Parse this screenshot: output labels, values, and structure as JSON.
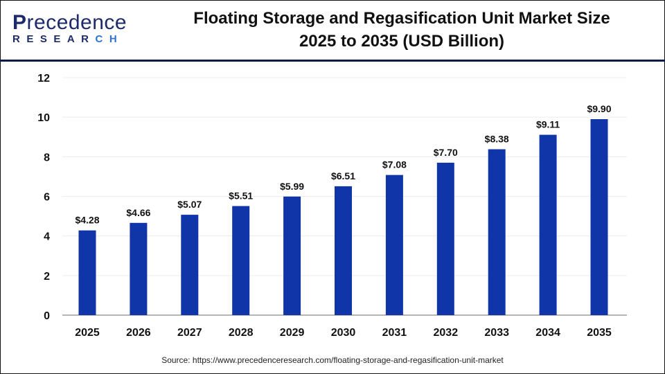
{
  "brand": {
    "logo_text": "Precedence",
    "logo_subtext": "RESEARCH"
  },
  "title_line1": "Floating Storage and Regasification Unit Market Size",
  "title_line2": "2025 to 2035 (USD Billion)",
  "source": "Source: https://www.precedenceresearch.com/floating-storage-and-regasification-unit-market",
  "chart_data": {
    "type": "bar",
    "title": "Floating Storage and Regasification Unit Market Size 2025 to 2035 (USD Billion)",
    "categories": [
      "2025",
      "2026",
      "2027",
      "2028",
      "2029",
      "2030",
      "2031",
      "2032",
      "2033",
      "2034",
      "2035"
    ],
    "values": [
      4.28,
      4.66,
      5.07,
      5.51,
      5.99,
      6.51,
      7.08,
      7.7,
      8.38,
      9.11,
      9.9
    ],
    "data_labels": [
      "$4.28",
      "$4.66",
      "$5.07",
      "$5.51",
      "$5.99",
      "$6.51",
      "$7.08",
      "$7.70",
      "$8.38",
      "$9.11",
      "$9.90"
    ],
    "ylim": [
      0,
      12
    ],
    "yticks": [
      0,
      2,
      4,
      6,
      8,
      10,
      12
    ],
    "grid": true,
    "bar_color": "#0f35a8",
    "xlabel": "",
    "ylabel": ""
  }
}
